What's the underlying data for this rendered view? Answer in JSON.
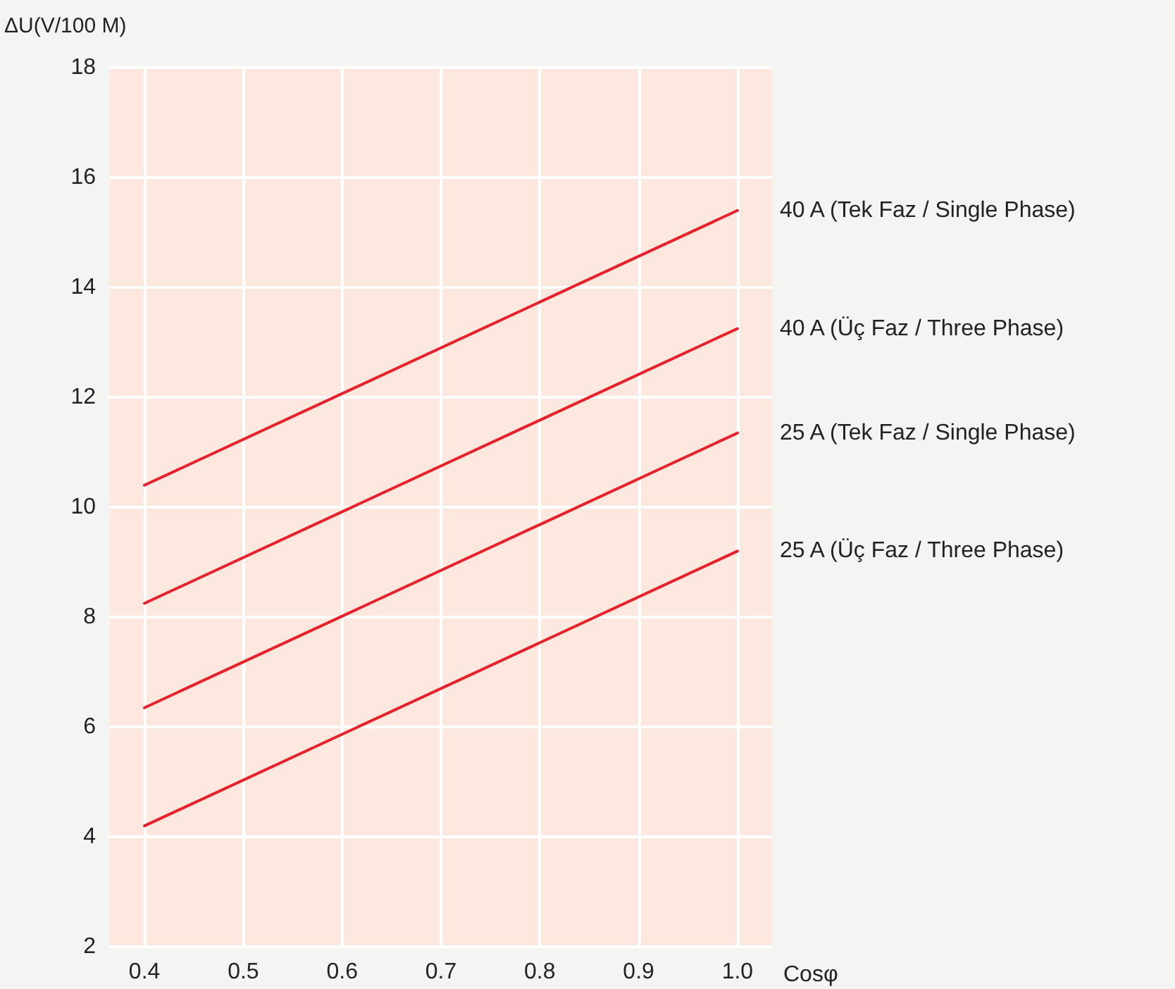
{
  "chart_data": {
    "type": "line",
    "ylabel": "ΔU(V/100 M)",
    "xlabel": "Cosφ",
    "xlim": [
      0.365,
      1.035
    ],
    "xticks": [
      {
        "value": 0.4,
        "label": "0.4"
      },
      {
        "value": 0.5,
        "label": "0.5"
      },
      {
        "value": 0.6,
        "label": "0.6"
      },
      {
        "value": 0.7,
        "label": "0.7"
      },
      {
        "value": 0.8,
        "label": "0.8"
      },
      {
        "value": 0.9,
        "label": "0.9"
      },
      {
        "value": 1.0,
        "label": "1.0"
      }
    ],
    "ylim": [
      2,
      18
    ],
    "yticks": [
      2,
      4,
      6,
      8,
      10,
      12,
      14,
      16,
      18
    ],
    "x": [
      0.4,
      1.0
    ],
    "series": [
      {
        "name": "40 A (Tek Faz / Single Phase)",
        "color": "#e8202a",
        "values": [
          10.4,
          15.4
        ]
      },
      {
        "name": "40 A (Üç Faz / Three Phase)",
        "color": "#e8202a",
        "values": [
          8.25,
          13.25
        ]
      },
      {
        "name": "25 A (Tek Faz / Single Phase)",
        "color": "#e8202a",
        "values": [
          6.35,
          11.35
        ]
      },
      {
        "name": "25 A (Üç Faz / Three Phase)",
        "color": "#e8202a",
        "values": [
          4.2,
          9.2
        ]
      }
    ],
    "grid": true,
    "legend": false,
    "marker": "none",
    "line_style": "solid"
  }
}
